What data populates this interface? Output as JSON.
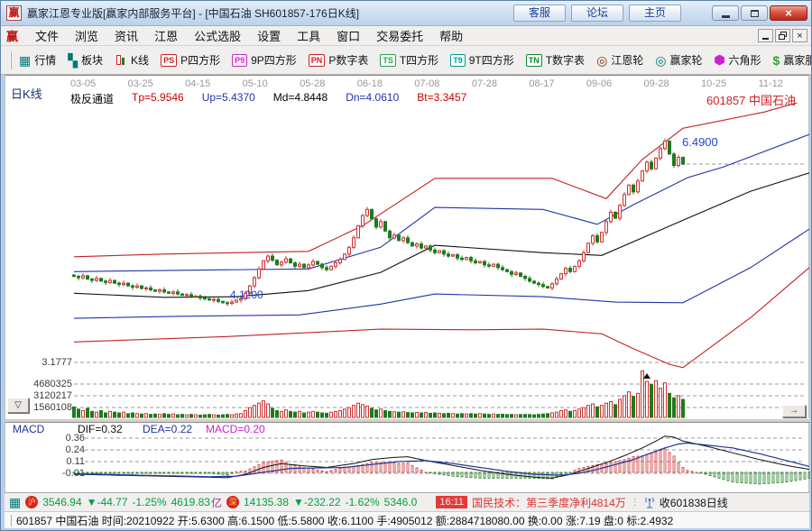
{
  "window": {
    "title": "赢家江恩专业版[赢家内部服务平台] - [中国石油  SH601857-176日K线]",
    "logo_glyph": "赢",
    "titlebar_buttons": [
      "客服",
      "论坛",
      "主页"
    ],
    "close_glyph": "×"
  },
  "menu": {
    "items": [
      "文件",
      "浏览",
      "资讯",
      "江恩",
      "公式选股",
      "设置",
      "工具",
      "窗口",
      "交易委托",
      "帮助"
    ]
  },
  "toolbar": {
    "items": [
      {
        "label": "行情",
        "icon": "grid",
        "glyph": "▦",
        "color": "#007878"
      },
      {
        "label": "板块",
        "icon": "blocks",
        "glyph": "▚",
        "color": "#007878"
      },
      {
        "label": "K线",
        "icon": "candles",
        "glyph": "",
        "color": "#cc2222"
      },
      {
        "label": "P四方形",
        "icon": "chip",
        "glyph": "PS",
        "color": "#cc2222"
      },
      {
        "label": "9P四方形",
        "icon": "chip",
        "glyph": "P9",
        "color": "#cc22cc"
      },
      {
        "label": "P数字表",
        "icon": "chip",
        "glyph": "PN",
        "color": "#cc2222"
      },
      {
        "label": "T四方形",
        "icon": "chip",
        "glyph": "TS",
        "color": "#22a044"
      },
      {
        "label": "9T四方形",
        "icon": "chip",
        "glyph": "T9",
        "color": "#009999"
      },
      {
        "label": "T数字表",
        "icon": "chip",
        "glyph": "TN",
        "color": "#118833"
      },
      {
        "label": "江恩轮",
        "icon": "wheel",
        "glyph": "◎",
        "color": "#8a3300"
      },
      {
        "label": "赢家轮",
        "icon": "wheel",
        "glyph": "◎",
        "color": "#007878"
      },
      {
        "label": "六角形",
        "icon": "hexagon",
        "glyph": "",
        "color": "#cc22cc"
      },
      {
        "label": "赢家服务",
        "icon": "dollar",
        "glyph": "$",
        "color": "#33a033"
      }
    ]
  },
  "chart_header": {
    "period_label": "日K线",
    "dates": [
      "03-05",
      "03-25",
      "04-15",
      "05-10",
      "05-28",
      "06-18",
      "07-08",
      "07-28",
      "08-17",
      "09-06",
      "09-28",
      "10-25",
      "11-12"
    ],
    "params": [
      {
        "text": "极反通道",
        "color": "#000000"
      },
      {
        "text": "Tp=5.9546",
        "color": "#cc0000"
      },
      {
        "text": "Up=5.4370",
        "color": "#2233aa"
      },
      {
        "text": "Md=4.8448",
        "color": "#000000"
      },
      {
        "text": "Dn=4.0610",
        "color": "#2233aa"
      },
      {
        "text": "Bt=3.3457",
        "color": "#cc0000"
      }
    ],
    "symbol": "601857 中国石油"
  },
  "annotations": {
    "high": "6.4900",
    "low": "4.1200"
  },
  "axis": {
    "price_bottom": "3.1777",
    "volume": [
      "4680325",
      "3120217",
      "1560108"
    ],
    "macd": [
      "0.36",
      "0.24",
      "0.11",
      "-0.01"
    ]
  },
  "controls": {
    "collapse": "▽",
    "scroll_right": "→"
  },
  "macd_header": {
    "name": "MACD",
    "dif": "DIF=0.32",
    "dea": "DEA=0.22",
    "macd": "MACD=0.20"
  },
  "colors": {
    "up": "#d03030",
    "down": "#1e7a1e",
    "channel_red": "#c42222",
    "channel_blue": "#2233aa",
    "channel_mid": "#111111",
    "grid": "#999999",
    "dif_line": "#111111",
    "dea_line": "#223399",
    "marker": "#111111"
  },
  "chart_data": {
    "type": "candlestick",
    "title": "中国石油 SH601857 176日K线",
    "period": "日K线",
    "indicator": "极反通道",
    "channel_values": {
      "Tp": 5.9546,
      "Up": 5.437,
      "Md": 4.8448,
      "Dn": 4.061,
      "Bt": 3.3457
    },
    "price_axis_bottom": 3.1777,
    "volume_grid_step": 1560108,
    "close_line_price": 6.11,
    "high_marker": {
      "index": 131,
      "price": 6.49
    },
    "low_label_price": 4.12,
    "volume_marker_index": 127,
    "closes": [
      4.45,
      4.43,
      4.46,
      4.41,
      4.39,
      4.42,
      4.38,
      4.36,
      4.39,
      4.35,
      4.33,
      4.35,
      4.31,
      4.29,
      4.31,
      4.27,
      4.28,
      4.25,
      4.23,
      4.25,
      4.22,
      4.2,
      4.22,
      4.19,
      4.17,
      4.18,
      4.15,
      4.16,
      4.13,
      4.12,
      4.1,
      4.11,
      4.08,
      4.06,
      4.05,
      4.07,
      4.1,
      4.12,
      4.2,
      4.31,
      4.43,
      4.56,
      4.68,
      4.75,
      4.69,
      4.62,
      4.66,
      4.71,
      4.65,
      4.6,
      4.63,
      4.58,
      4.62,
      4.67,
      4.63,
      4.58,
      4.55,
      4.6,
      4.65,
      4.7,
      4.78,
      4.88,
      5.02,
      5.2,
      5.35,
      5.44,
      5.3,
      5.18,
      5.26,
      5.12,
      5.02,
      5.06,
      4.98,
      5.02,
      4.95,
      4.9,
      4.93,
      4.87,
      4.9,
      4.84,
      4.8,
      4.83,
      4.78,
      4.75,
      4.77,
      4.72,
      4.7,
      4.73,
      4.68,
      4.65,
      4.67,
      4.62,
      4.6,
      4.63,
      4.58,
      4.55,
      4.52,
      4.48,
      4.5,
      4.45,
      4.42,
      4.38,
      4.35,
      4.33,
      4.3,
      4.28,
      4.34,
      4.41,
      4.49,
      4.57,
      4.52,
      4.6,
      4.68,
      4.8,
      4.94,
      5.05,
      4.96,
      5.1,
      5.26,
      5.4,
      5.31,
      5.5,
      5.66,
      5.8,
      5.7,
      5.86,
      6.01,
      6.14,
      6.04,
      6.2,
      6.34,
      6.45,
      6.26,
      6.09,
      6.21,
      6.11
    ],
    "volumes": [
      1400000,
      1100000,
      900000,
      1200000,
      800000,
      700000,
      900000,
      600000,
      800000,
      700000,
      600000,
      700000,
      500000,
      600000,
      500000,
      450000,
      500000,
      400000,
      450000,
      400000,
      500000,
      400000,
      450000,
      350000,
      400000,
      350000,
      400000,
      350000,
      300000,
      350000,
      400000,
      350000,
      300000,
      350000,
      400000,
      350000,
      450000,
      500000,
      900000,
      1300000,
      1600000,
      1900000,
      2200000,
      1800000,
      1200000,
      900000,
      800000,
      1000000,
      800000,
      700000,
      800000,
      600000,
      700000,
      800000,
      700000,
      600000,
      550000,
      700000,
      800000,
      900000,
      1100000,
      1300000,
      1600000,
      1900000,
      1700000,
      1500000,
      1200000,
      1000000,
      1100000,
      900000,
      800000,
      750000,
      700000,
      750000,
      650000,
      600000,
      650000,
      600000,
      650000,
      550000,
      600000,
      550000,
      500000,
      550000,
      500000,
      450000,
      500000,
      450000,
      500000,
      450000,
      500000,
      450000,
      400000,
      450000,
      400000,
      420000,
      380000,
      400000,
      360000,
      380000,
      400000,
      380000,
      350000,
      400000,
      450000,
      500000,
      600000,
      700000,
      900000,
      1000000,
      800000,
      900000,
      1100000,
      1300000,
      1600000,
      1800000,
      1400000,
      1600000,
      1900000,
      2100000,
      1700000,
      2400000,
      2900000,
      3400000,
      2800000,
      3200000,
      6200000,
      4800000,
      4400000,
      4900000,
      3900000,
      4600000,
      3200000,
      2600000,
      2900000,
      2400000
    ],
    "channel_lines": {
      "tp": [
        [
          0,
          4.74
        ],
        [
          20,
          4.78
        ],
        [
          52,
          4.82
        ],
        [
          64,
          5.2
        ],
        [
          80,
          5.9
        ],
        [
          106,
          5.9
        ],
        [
          118,
          5.6
        ],
        [
          126,
          6.18
        ],
        [
          135,
          6.64
        ],
        [
          153,
          6.88
        ],
        [
          163,
          7.07
        ]
      ],
      "up": [
        [
          0,
          4.52
        ],
        [
          24,
          4.54
        ],
        [
          52,
          4.56
        ],
        [
          68,
          4.88
        ],
        [
          80,
          5.47
        ],
        [
          104,
          5.44
        ],
        [
          116,
          5.22
        ],
        [
          124,
          5.51
        ],
        [
          136,
          5.91
        ],
        [
          144,
          6.07
        ],
        [
          163,
          6.55
        ]
      ],
      "md": [
        [
          0,
          4.2
        ],
        [
          20,
          4.14
        ],
        [
          36,
          4.15
        ],
        [
          52,
          4.24
        ],
        [
          68,
          4.51
        ],
        [
          80,
          4.91
        ],
        [
          104,
          4.8
        ],
        [
          117,
          4.76
        ],
        [
          136,
          5.31
        ],
        [
          150,
          5.71
        ],
        [
          163,
          5.98
        ]
      ],
      "dn": [
        [
          0,
          3.83
        ],
        [
          24,
          3.86
        ],
        [
          50,
          3.88
        ],
        [
          68,
          4.04
        ],
        [
          80,
          4.19
        ],
        [
          104,
          4.15
        ],
        [
          120,
          4.07
        ],
        [
          135,
          4.06
        ],
        [
          150,
          4.58
        ],
        [
          163,
          5.15
        ]
      ],
      "bt": [
        [
          0,
          3.48
        ],
        [
          34,
          3.56
        ],
        [
          68,
          3.67
        ],
        [
          88,
          3.66
        ],
        [
          104,
          3.67
        ],
        [
          117,
          3.6
        ],
        [
          124,
          3.38
        ],
        [
          132,
          3.15
        ],
        [
          135,
          3.1
        ],
        [
          150,
          3.84
        ],
        [
          163,
          4.58
        ]
      ]
    },
    "macd": {
      "dif": 0.32,
      "dea": 0.22,
      "macd": 0.2,
      "extent": 163,
      "dif_points": [
        [
          0,
          -0.02
        ],
        [
          15,
          -0.035
        ],
        [
          30,
          -0.05
        ],
        [
          34,
          -0.055
        ],
        [
          38,
          -0.02
        ],
        [
          42,
          0.05
        ],
        [
          46,
          0.09
        ],
        [
          50,
          0.07
        ],
        [
          56,
          0.05
        ],
        [
          62,
          0.09
        ],
        [
          66,
          0.13
        ],
        [
          70,
          0.15
        ],
        [
          74,
          0.16
        ],
        [
          78,
          0.12
        ],
        [
          84,
          0.07
        ],
        [
          90,
          0.02
        ],
        [
          96,
          -0.02
        ],
        [
          102,
          -0.05
        ],
        [
          106,
          -0.06
        ],
        [
          110,
          -0.02
        ],
        [
          114,
          0.04
        ],
        [
          118,
          0.1
        ],
        [
          122,
          0.17
        ],
        [
          126,
          0.25
        ],
        [
          129,
          0.32
        ],
        [
          131,
          0.37
        ],
        [
          133,
          0.36
        ],
        [
          135,
          0.32
        ],
        [
          140,
          0.27
        ],
        [
          146,
          0.2
        ],
        [
          152,
          0.13
        ],
        [
          158,
          0.07
        ],
        [
          163,
          0.03
        ]
      ],
      "dea_points": [
        [
          0,
          -0.015
        ],
        [
          15,
          -0.03
        ],
        [
          30,
          -0.045
        ],
        [
          36,
          -0.04
        ],
        [
          42,
          0.0
        ],
        [
          48,
          0.04
        ],
        [
          54,
          0.045
        ],
        [
          60,
          0.05
        ],
        [
          66,
          0.08
        ],
        [
          72,
          0.11
        ],
        [
          78,
          0.12
        ],
        [
          84,
          0.09
        ],
        [
          90,
          0.05
        ],
        [
          96,
          0.01
        ],
        [
          102,
          -0.02
        ],
        [
          108,
          -0.03
        ],
        [
          112,
          -0.01
        ],
        [
          116,
          0.03
        ],
        [
          120,
          0.08
        ],
        [
          124,
          0.13
        ],
        [
          128,
          0.2
        ],
        [
          131,
          0.25
        ],
        [
          134,
          0.29
        ],
        [
          136,
          0.3
        ],
        [
          140,
          0.28
        ],
        [
          146,
          0.25
        ],
        [
          152,
          0.19
        ],
        [
          158,
          0.12
        ],
        [
          163,
          0.06
        ]
      ]
    }
  },
  "status_bar": {
    "quote_icon_glyph": "▦",
    "sh": {
      "badge": "沪",
      "index": "3546.94",
      "change": "▼-44.77",
      "pct": "-1.25%",
      "amount": "4619.83",
      "unit": "亿"
    },
    "sz": {
      "badge": "深",
      "index": "14135.38",
      "change": "▼-232.22",
      "pct": "-1.62%",
      "amount": "5346.0"
    },
    "news_time": "16:11",
    "news": "国民技术：第三季度净利4814万",
    "ticker_sep": "⋮",
    "right": "收601838日线"
  },
  "info_bar": {
    "text": "601857 中国石油 时间:20210922 开:5.6300 高:6.1500 低:5.5800 收:6.1100 手:4905012 额:2884718080.00 换:0.00 涨:7.19 盘:0 标:2.4932"
  }
}
